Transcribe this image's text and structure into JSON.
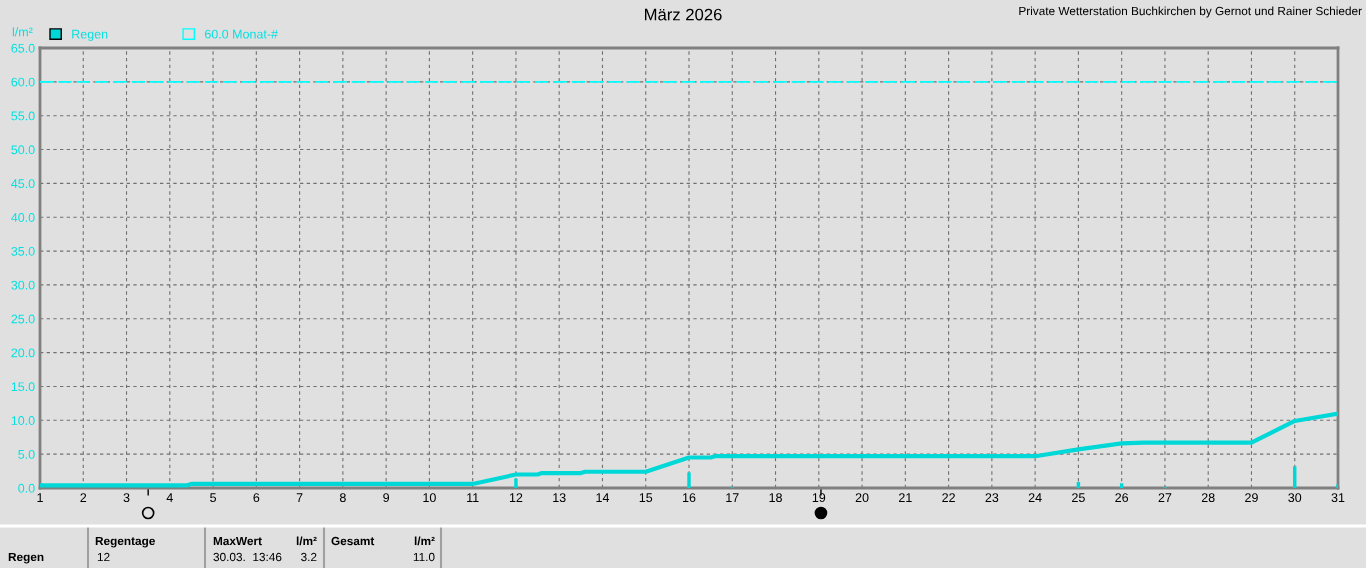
{
  "chart_data": {
    "type": "line",
    "title": "März 2026",
    "subtitle": "Private Wetterstation Buchkirchen by Gernot und Rainer Schieder",
    "ylabel": "l/m²",
    "series": [
      {
        "name": "Regen",
        "type": "bar",
        "color": "#00d8d8",
        "x": [
          12,
          16,
          17,
          25,
          26,
          27,
          30,
          31
        ],
        "values": [
          1.4,
          2.3,
          0.1,
          0.9,
          0.7,
          0.1,
          3.2,
          0.6
        ]
      },
      {
        "color": "#00d8d8",
        "x": [
          1,
          4.4,
          4.5,
          11,
          12,
          12.5,
          12.6,
          13.5,
          13.6,
          15,
          16,
          16.5,
          16.6,
          24,
          25,
          26,
          26.5,
          29,
          30,
          31
        ],
        "values": [
          0.4,
          0.4,
          0.6,
          0.6,
          2.0,
          2.0,
          2.2,
          2.2,
          2.4,
          2.4,
          4.5,
          4.5,
          4.7,
          4.7,
          5.7,
          6.6,
          6.7,
          6.7,
          9.9,
          11.0
        ]
      }
    ],
    "xlim": [
      1,
      31
    ],
    "xticks": [
      1,
      2,
      3,
      4,
      5,
      6,
      7,
      8,
      9,
      10,
      11,
      12,
      13,
      14,
      15,
      16,
      17,
      18,
      19,
      20,
      21,
      22,
      23,
      24,
      25,
      26,
      27,
      28,
      29,
      30,
      31
    ],
    "ylim": [
      0,
      65
    ],
    "yticks": [
      {
        "value": 0,
        "label": "0.0"
      },
      {
        "value": 5,
        "label": "5.0"
      },
      {
        "value": 10,
        "label": "10.0"
      },
      {
        "value": 15,
        "label": "15.0"
      },
      {
        "value": 20,
        "label": "20.0"
      },
      {
        "value": 25,
        "label": "25.0"
      },
      {
        "value": 30,
        "label": "30.0"
      },
      {
        "value": 35,
        "label": "35.0"
      },
      {
        "value": 40,
        "label": "40.0"
      },
      {
        "value": 45,
        "label": "45.0"
      },
      {
        "value": 50,
        "label": "50.0"
      },
      {
        "value": 55,
        "label": "55.0"
      },
      {
        "value": 60,
        "label": "60.0"
      },
      {
        "value": 65,
        "label": "65.0"
      }
    ],
    "ref_lines": [
      {
        "axis": "y",
        "value": 60,
        "label": "60.0 Monat-#",
        "color": "#00ffff",
        "line_style": "dashed"
      }
    ],
    "grid": true,
    "legend": "top left",
    "annotations": [
      "Regen",
      "Regentage",
      "12",
      "MaxWert",
      "l/m²",
      "30.03.  13:46",
      "3.2",
      "Gesamt",
      "l/m²",
      "11.0"
    ]
  }
}
